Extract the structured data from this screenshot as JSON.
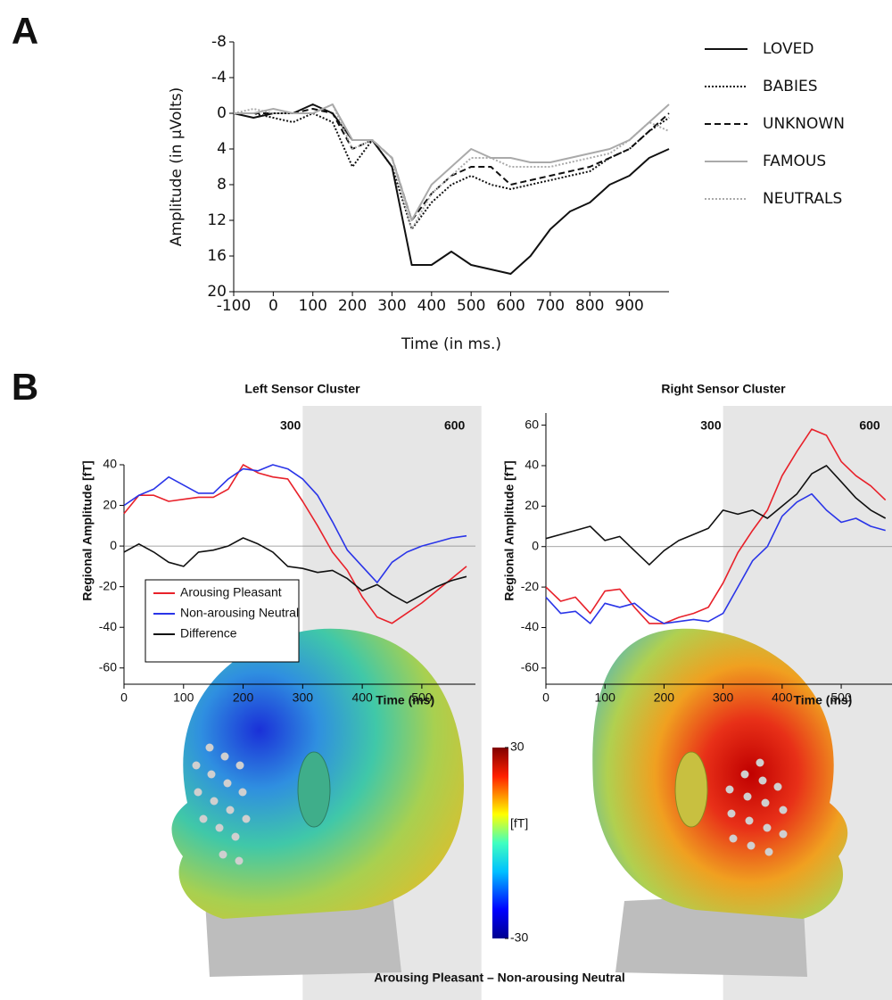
{
  "panels": [
    "A",
    "B"
  ],
  "caption": "Arousing Pleasant – Non-arousing Neutral",
  "colorbar": {
    "lim": [
      -30,
      30
    ],
    "ticks": [
      -30,
      30
    ],
    "label": "[fT]"
  },
  "chart_data": [
    {
      "type": "line",
      "xlabel": "Time (in ms.)",
      "ylabel": "Amplitude (in μVolts)",
      "x": [
        -100,
        -50,
        0,
        50,
        100,
        150,
        200,
        250,
        300,
        350,
        400,
        450,
        500,
        550,
        600,
        650,
        700,
        750,
        800,
        850,
        900,
        950,
        1000
      ],
      "xlim": [
        -100,
        1000
      ],
      "xticks": [
        -100,
        0,
        100,
        200,
        300,
        400,
        500,
        600,
        700,
        800,
        900
      ],
      "ylim": [
        20,
        -8
      ],
      "yticks": [
        -8,
        -4,
        0,
        4,
        8,
        12,
        16,
        20
      ],
      "legend": "right",
      "series": [
        {
          "name": "LOVED",
          "color": "#111111",
          "dash": "solid",
          "values": [
            0,
            0.5,
            0,
            0,
            -1,
            0,
            3,
            3,
            6,
            17,
            17,
            15.5,
            17,
            17.5,
            18,
            16,
            13,
            11,
            10,
            8,
            7,
            5,
            4
          ]
        },
        {
          "name": "BABIES",
          "color": "#111111",
          "dash": "dotted",
          "values": [
            0,
            0,
            0.5,
            1,
            0,
            1,
            6,
            3,
            6,
            13,
            10,
            8,
            7,
            8,
            8.5,
            8,
            7.5,
            7,
            6.5,
            5,
            4,
            2,
            0.5
          ]
        },
        {
          "name": "UNKNOWN",
          "color": "#111111",
          "dash": "dashed",
          "values": [
            0,
            0,
            0,
            0,
            -0.5,
            0,
            4,
            3,
            5,
            12,
            9,
            7,
            6,
            6,
            8,
            7.5,
            7,
            6.5,
            6,
            5,
            4,
            2,
            0
          ]
        },
        {
          "name": "FAMOUS",
          "color": "#aaaaaa",
          "dash": "solid",
          "values": [
            0,
            0,
            -0.5,
            0,
            0,
            -1,
            3,
            3,
            5,
            12,
            8,
            6,
            4,
            5,
            5,
            5.5,
            5.5,
            5,
            4.5,
            4,
            3,
            1,
            -1
          ]
        },
        {
          "name": "NEUTRALS",
          "color": "#aaaaaa",
          "dash": "dotted",
          "values": [
            0,
            -0.5,
            0,
            0,
            0,
            -1,
            4,
            3,
            5,
            13,
            9,
            7,
            5,
            5,
            6,
            6,
            6,
            5.5,
            5,
            4.5,
            3,
            1,
            2
          ]
        }
      ]
    },
    {
      "type": "line",
      "title": "Left Sensor Cluster",
      "xlabel": "Time (ms)",
      "ylabel": "Regional Amplitude [fT]",
      "x": [
        0,
        25,
        50,
        75,
        100,
        125,
        150,
        175,
        200,
        225,
        250,
        275,
        300,
        325,
        350,
        375,
        400,
        425,
        450,
        475,
        500,
        525,
        550,
        575
      ],
      "xlim": [
        0,
        590
      ],
      "xticks": [
        0,
        100,
        200,
        300,
        400,
        500
      ],
      "ylim": [
        -68,
        40
      ],
      "yticks": [
        -60,
        -40,
        -20,
        0,
        20,
        40
      ],
      "shaded_region": [
        300,
        600
      ],
      "zero_line": true,
      "legend": "lower left",
      "series": [
        {
          "name": "Arousing Pleasant",
          "color": "#e8212a",
          "values": [
            16,
            25,
            25,
            22,
            23,
            24,
            24,
            28,
            40,
            36,
            34,
            33,
            22,
            10,
            -3,
            -12,
            -25,
            -35,
            -38,
            -33,
            -28,
            -22,
            -16,
            -10
          ]
        },
        {
          "name": "Non-arousing Neutral",
          "color": "#2a35e8",
          "values": [
            20,
            25,
            28,
            34,
            30,
            26,
            26,
            33,
            38,
            37,
            40,
            38,
            33,
            25,
            12,
            -2,
            -10,
            -18,
            -8,
            -3,
            0,
            2,
            4,
            5
          ]
        },
        {
          "name": "Difference",
          "color": "#111111",
          "values": [
            -3,
            1,
            -3,
            -8,
            -10,
            -3,
            -2,
            0,
            4,
            1,
            -3,
            -10,
            -11,
            -13,
            -12,
            -16,
            -22,
            -19,
            -24,
            -28,
            -24,
            -20,
            -17,
            -15
          ]
        }
      ]
    },
    {
      "type": "line",
      "title": "Right Sensor Cluster",
      "xlabel": "Time (ms)",
      "ylabel": "Regional Amplitude [fT]",
      "x": [
        0,
        25,
        50,
        75,
        100,
        125,
        150,
        175,
        200,
        225,
        250,
        275,
        300,
        325,
        350,
        375,
        400,
        425,
        450,
        475,
        500,
        525,
        550,
        575
      ],
      "xlim": [
        0,
        586
      ],
      "xticks": [
        0,
        100,
        200,
        300,
        400,
        500
      ],
      "ylim": [
        -68,
        66
      ],
      "yticks": [
        -60,
        -40,
        -20,
        0,
        20,
        40,
        60
      ],
      "shaded_region": [
        300,
        600
      ],
      "zero_line": true,
      "series": [
        {
          "color": "#e8212a",
          "values": [
            -20,
            -27,
            -25,
            -33,
            -22,
            -21,
            -30,
            -38,
            -38,
            -35,
            -33,
            -30,
            -18,
            -3,
            8,
            18,
            35,
            47,
            58,
            55,
            42,
            35,
            30,
            23
          ]
        },
        {
          "color": "#2a35e8",
          "values": [
            -25,
            -33,
            -32,
            -38,
            -28,
            -30,
            -28,
            -34,
            -38,
            -37,
            -36,
            -37,
            -33,
            -20,
            -7,
            0,
            15,
            22,
            26,
            18,
            12,
            14,
            10,
            8
          ]
        },
        {
          "color": "#111111",
          "values": [
            4,
            6,
            8,
            10,
            3,
            5,
            -2,
            -9,
            -2,
            3,
            6,
            9,
            18,
            16,
            18,
            14,
            20,
            26,
            36,
            40,
            32,
            24,
            18,
            14
          ]
        }
      ]
    }
  ]
}
